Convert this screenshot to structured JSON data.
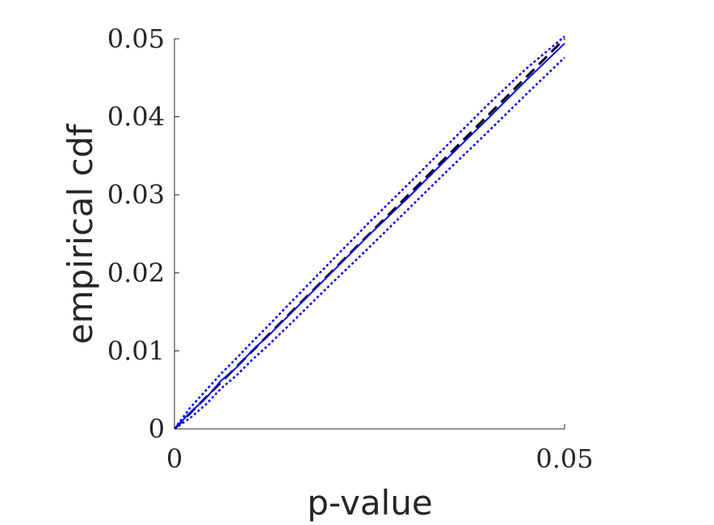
{
  "chart_data": {
    "type": "line",
    "title": "",
    "xlabel": "p-value",
    "ylabel": "empirical cdf",
    "xlim": [
      0,
      0.05
    ],
    "ylim": [
      0,
      0.05
    ],
    "x_ticks": [
      "0",
      "0.05"
    ],
    "y_ticks": [
      "0",
      "0.01",
      "0.02",
      "0.03",
      "0.04",
      "0.05"
    ],
    "grid": false,
    "legend": "none",
    "colors": {
      "reference": "#000000",
      "band": "#0000ff",
      "estimate": "#0000ff"
    },
    "series": [
      {
        "style": "dashed",
        "color": "#000000",
        "x": [
          0,
          0.05
        ],
        "y": [
          0,
          0.05
        ]
      },
      {
        "style": "solid",
        "color": "#0000ff",
        "x": [
          0,
          0.002,
          0.004,
          0.006,
          0.008,
          0.01,
          0.012,
          0.015,
          0.02,
          0.025,
          0.03,
          0.035,
          0.04,
          0.045,
          0.05
        ],
        "y": [
          0,
          0.0021,
          0.0039,
          0.0062,
          0.0079,
          0.0101,
          0.0119,
          0.0149,
          0.0199,
          0.0249,
          0.0297,
          0.0347,
          0.0396,
          0.0446,
          0.0494
        ]
      },
      {
        "style": "dotted",
        "color": "#0000ff",
        "x": [
          0,
          0.002,
          0.004,
          0.006,
          0.008,
          0.01,
          0.012,
          0.015,
          0.02,
          0.025,
          0.03,
          0.035,
          0.04,
          0.045,
          0.05
        ],
        "y": [
          0,
          0.0027,
          0.0049,
          0.0071,
          0.0091,
          0.0112,
          0.0132,
          0.0163,
          0.0214,
          0.0265,
          0.0314,
          0.0364,
          0.0414,
          0.0461,
          0.0503
        ]
      },
      {
        "style": "dotted",
        "color": "#0000ff",
        "x": [
          0,
          0.002,
          0.004,
          0.006,
          0.008,
          0.01,
          0.012,
          0.015,
          0.02,
          0.025,
          0.03,
          0.035,
          0.04,
          0.045,
          0.05
        ],
        "y": [
          0,
          0.0014,
          0.0031,
          0.0052,
          0.0069,
          0.0089,
          0.0107,
          0.0136,
          0.0185,
          0.0233,
          0.0282,
          0.0331,
          0.0379,
          0.0428,
          0.0476
        ]
      }
    ]
  }
}
